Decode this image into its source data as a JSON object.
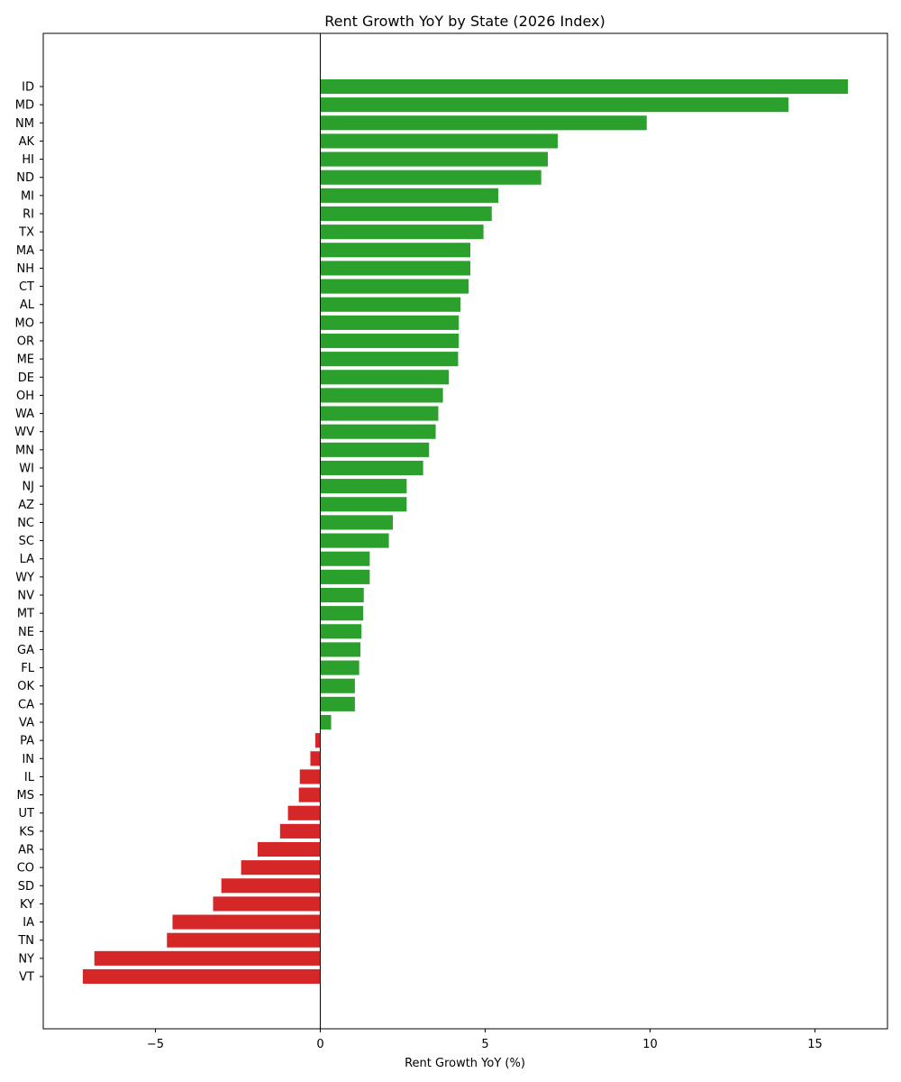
{
  "chart_data": {
    "type": "bar",
    "orientation": "horizontal",
    "title": "Rent Growth YoY by State (2026 Index)",
    "xlabel": "Rent Growth YoY (%)",
    "ylabel": "",
    "xlim": [
      -8.4,
      17.2
    ],
    "xticks": [
      -5,
      0,
      5,
      10,
      15
    ],
    "xtick_labels": [
      "−5",
      "0",
      "5",
      "10",
      "15"
    ],
    "grid": false,
    "legend": "none",
    "zero_line": true,
    "colors": {
      "positive": "#2ca02c",
      "negative": "#d62728"
    },
    "categories": [
      "ID",
      "MD",
      "NM",
      "AK",
      "HI",
      "ND",
      "MI",
      "RI",
      "TX",
      "MA",
      "NH",
      "CT",
      "AL",
      "MO",
      "OR",
      "ME",
      "DE",
      "OH",
      "WA",
      "WV",
      "MN",
      "WI",
      "NJ",
      "AZ",
      "NC",
      "SC",
      "LA",
      "WY",
      "NV",
      "MT",
      "NE",
      "GA",
      "FL",
      "OK",
      "CA",
      "VA",
      "PA",
      "IN",
      "IL",
      "MS",
      "UT",
      "KS",
      "AR",
      "CO",
      "SD",
      "KY",
      "IA",
      "TN",
      "NY",
      "VT"
    ],
    "values": [
      16.0,
      14.2,
      9.9,
      7.2,
      6.9,
      6.7,
      5.4,
      5.2,
      4.95,
      4.55,
      4.55,
      4.5,
      4.25,
      4.2,
      4.2,
      4.18,
      3.9,
      3.72,
      3.58,
      3.5,
      3.3,
      3.12,
      2.62,
      2.62,
      2.2,
      2.08,
      1.5,
      1.5,
      1.32,
      1.3,
      1.25,
      1.22,
      1.18,
      1.05,
      1.05,
      0.33,
      -0.15,
      -0.3,
      -0.62,
      -0.65,
      -0.98,
      -1.22,
      -1.9,
      -2.4,
      -3.0,
      -3.25,
      -4.48,
      -4.65,
      -6.85,
      -7.2
    ]
  }
}
